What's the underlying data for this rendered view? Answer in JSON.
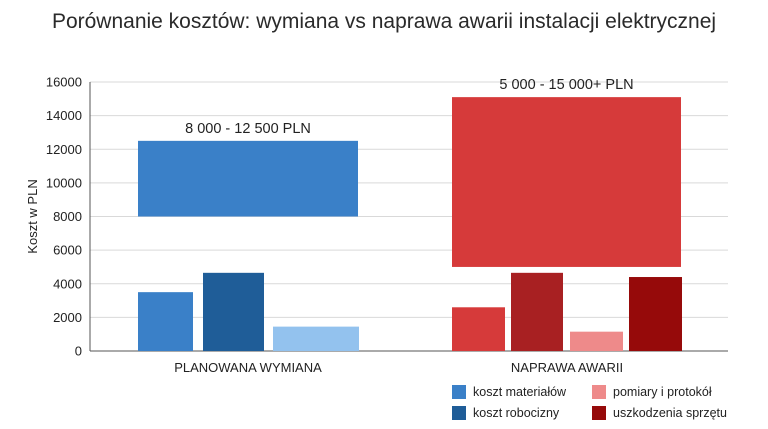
{
  "chart_data": {
    "type": "bar",
    "title": "Porównanie kosztów: wymiana vs naprawa awarii instalacji elektrycznej",
    "ylabel": "Koszt w PLN",
    "xlabel": "",
    "ylim": [
      0,
      16000
    ],
    "yticks": [
      0,
      2000,
      4000,
      6000,
      8000,
      10000,
      12000,
      14000,
      16000
    ],
    "grid": true,
    "legend_position": "bottom-right",
    "groups": [
      {
        "name": "PLANOWANA WYMIANA",
        "range": {
          "low": 8000,
          "high": 12500,
          "label": "8 000 - 12 500 PLN",
          "color": "#3a80c8"
        },
        "bars": [
          {
            "series": "koszt materiałów",
            "value": 3500,
            "color": "#3a80c8"
          },
          {
            "series": "koszt robocizny",
            "value": 4650,
            "color": "#1f5d98"
          },
          {
            "series": "pomiary i protokół",
            "value": 1450,
            "color": "#93c2ee"
          }
        ]
      },
      {
        "name": "NAPRAWA AWARII",
        "range": {
          "low": 5000,
          "high": 15100,
          "label": "5 000 - 15 000+ PLN",
          "color": "#d63a3a"
        },
        "bars": [
          {
            "series": "koszt materiałów",
            "value": 2600,
            "color": "#d63a3a"
          },
          {
            "series": "koszt robocizny",
            "value": 4650,
            "color": "#a82022"
          },
          {
            "series": "pomiary i protokół",
            "value": 1150,
            "color": "#ee8a8a"
          },
          {
            "series": "uszkodzenia sprzętu",
            "value": 4400,
            "color": "#960a0a"
          }
        ]
      }
    ]
  },
  "legend": [
    {
      "label": "koszt materiałów",
      "color": "#3a80c8"
    },
    {
      "label": "pomiary i protokół",
      "color": "#ee8a8a"
    },
    {
      "label": "koszt robocizny",
      "color": "#1f5d98"
    },
    {
      "label": "uszkodzenia sprzętu",
      "color": "#960a0a"
    }
  ]
}
